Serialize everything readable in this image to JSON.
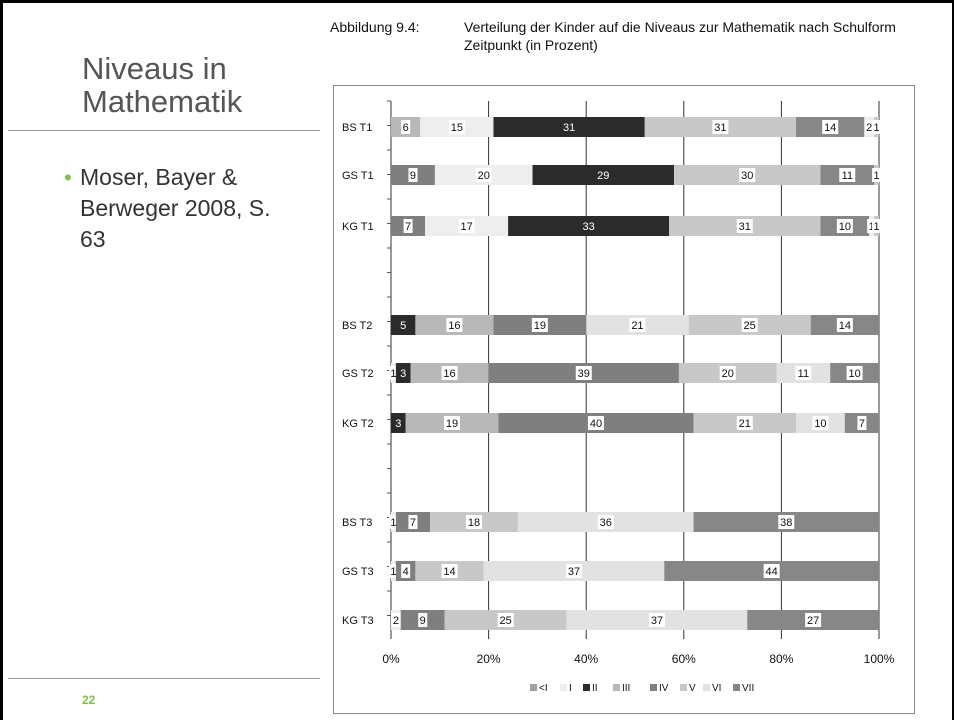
{
  "slide": {
    "title": "Niveaus in Mathematik",
    "bullet": "Moser, Bayer & Berweger 2008, S. 63",
    "page_number": "22"
  },
  "figure": {
    "caption_label": "Abbildung 9.4:",
    "caption_text": "Verteilung der Kinder auf die Niveaus zur Mathematik nach Schulform Zeitpunkt (in Prozent)"
  },
  "colors": {
    "<I": "#a0a0a0",
    "I": "#eeeeee",
    "II": "#2b2b2b",
    "III": "#b8b8b8",
    "IV": "#7f7f7f",
    "V": "#c8c8c8",
    "VI": "#e2e2e2",
    "VII": "#878787"
  },
  "chart_data": {
    "type": "bar",
    "orientation": "horizontal",
    "stacked": true,
    "x_ticks": [
      "0%",
      "20%",
      "40%",
      "60%",
      "80%",
      "100%"
    ],
    "xlim": [
      0,
      100
    ],
    "legend_position": "bottom",
    "legend": [
      "<I",
      "I",
      "II",
      "III",
      "IV",
      "V",
      "VI",
      "VII"
    ],
    "groups": [
      {
        "rows": [
          {
            "label": "BS T1",
            "segments": [
              {
                "level": "III",
                "value": 6
              },
              {
                "level": "I",
                "value": 15
              },
              {
                "level": "II",
                "value": 31
              },
              {
                "level": "V",
                "value": 31
              },
              {
                "level": "VII",
                "value": 14
              },
              {
                "level": "I",
                "value": 2
              },
              {
                "level": "V",
                "value": 1
              }
            ]
          },
          {
            "label": "GS T1",
            "segments": [
              {
                "level": "IV",
                "value": 9
              },
              {
                "level": "I",
                "value": 20
              },
              {
                "level": "II",
                "value": 29
              },
              {
                "level": "V",
                "value": 30
              },
              {
                "level": "VII",
                "value": 11
              },
              {
                "level": "V",
                "value": 1
              }
            ]
          },
          {
            "label": "KG T1",
            "segments": [
              {
                "level": "IV",
                "value": 7
              },
              {
                "level": "I",
                "value": 17
              },
              {
                "level": "II",
                "value": 33
              },
              {
                "level": "V",
                "value": 31
              },
              {
                "level": "VII",
                "value": 10
              },
              {
                "level": "I",
                "value": 1
              },
              {
                "level": "V",
                "value": 1
              }
            ]
          }
        ]
      },
      {
        "rows": [
          {
            "label": "BS T2",
            "segments": [
              {
                "level": "II",
                "value": 5
              },
              {
                "level": "III",
                "value": 16
              },
              {
                "level": "IV",
                "value": 19
              },
              {
                "level": "VI",
                "value": 21
              },
              {
                "level": "V",
                "value": 25
              },
              {
                "level": "VII",
                "value": 14
              }
            ]
          },
          {
            "label": "GS T2",
            "segments": [
              {
                "level": "I",
                "value": 1
              },
              {
                "level": "II",
                "value": 3
              },
              {
                "level": "III",
                "value": 16
              },
              {
                "level": "IV",
                "value": 39
              },
              {
                "level": "V",
                "value": 20
              },
              {
                "level": "VI",
                "value": 11
              },
              {
                "level": "VII",
                "value": 10
              }
            ]
          },
          {
            "label": "KG T2",
            "segments": [
              {
                "level": "II",
                "value": 3
              },
              {
                "level": "III",
                "value": 19
              },
              {
                "level": "IV",
                "value": 40
              },
              {
                "level": "V",
                "value": 21
              },
              {
                "level": "VI",
                "value": 10
              },
              {
                "level": "VII",
                "value": 7
              }
            ]
          }
        ]
      },
      {
        "rows": [
          {
            "label": "BS T3",
            "segments": [
              {
                "level": "I",
                "value": 1
              },
              {
                "level": "IV",
                "value": 7
              },
              {
                "level": "V",
                "value": 18
              },
              {
                "level": "VI",
                "value": 36
              },
              {
                "level": "VII",
                "value": 38
              }
            ]
          },
          {
            "label": "GS T3",
            "segments": [
              {
                "level": "I",
                "value": 1
              },
              {
                "level": "IV",
                "value": 4
              },
              {
                "level": "V",
                "value": 14
              },
              {
                "level": "VI",
                "value": 37
              },
              {
                "level": "VII",
                "value": 44
              }
            ]
          },
          {
            "label": "KG T3",
            "segments": [
              {
                "level": "I",
                "value": 2
              },
              {
                "level": "IV",
                "value": 9
              },
              {
                "level": "V",
                "value": 25
              },
              {
                "level": "VI",
                "value": 37
              },
              {
                "level": "VII",
                "value": 27
              }
            ]
          }
        ]
      }
    ]
  }
}
